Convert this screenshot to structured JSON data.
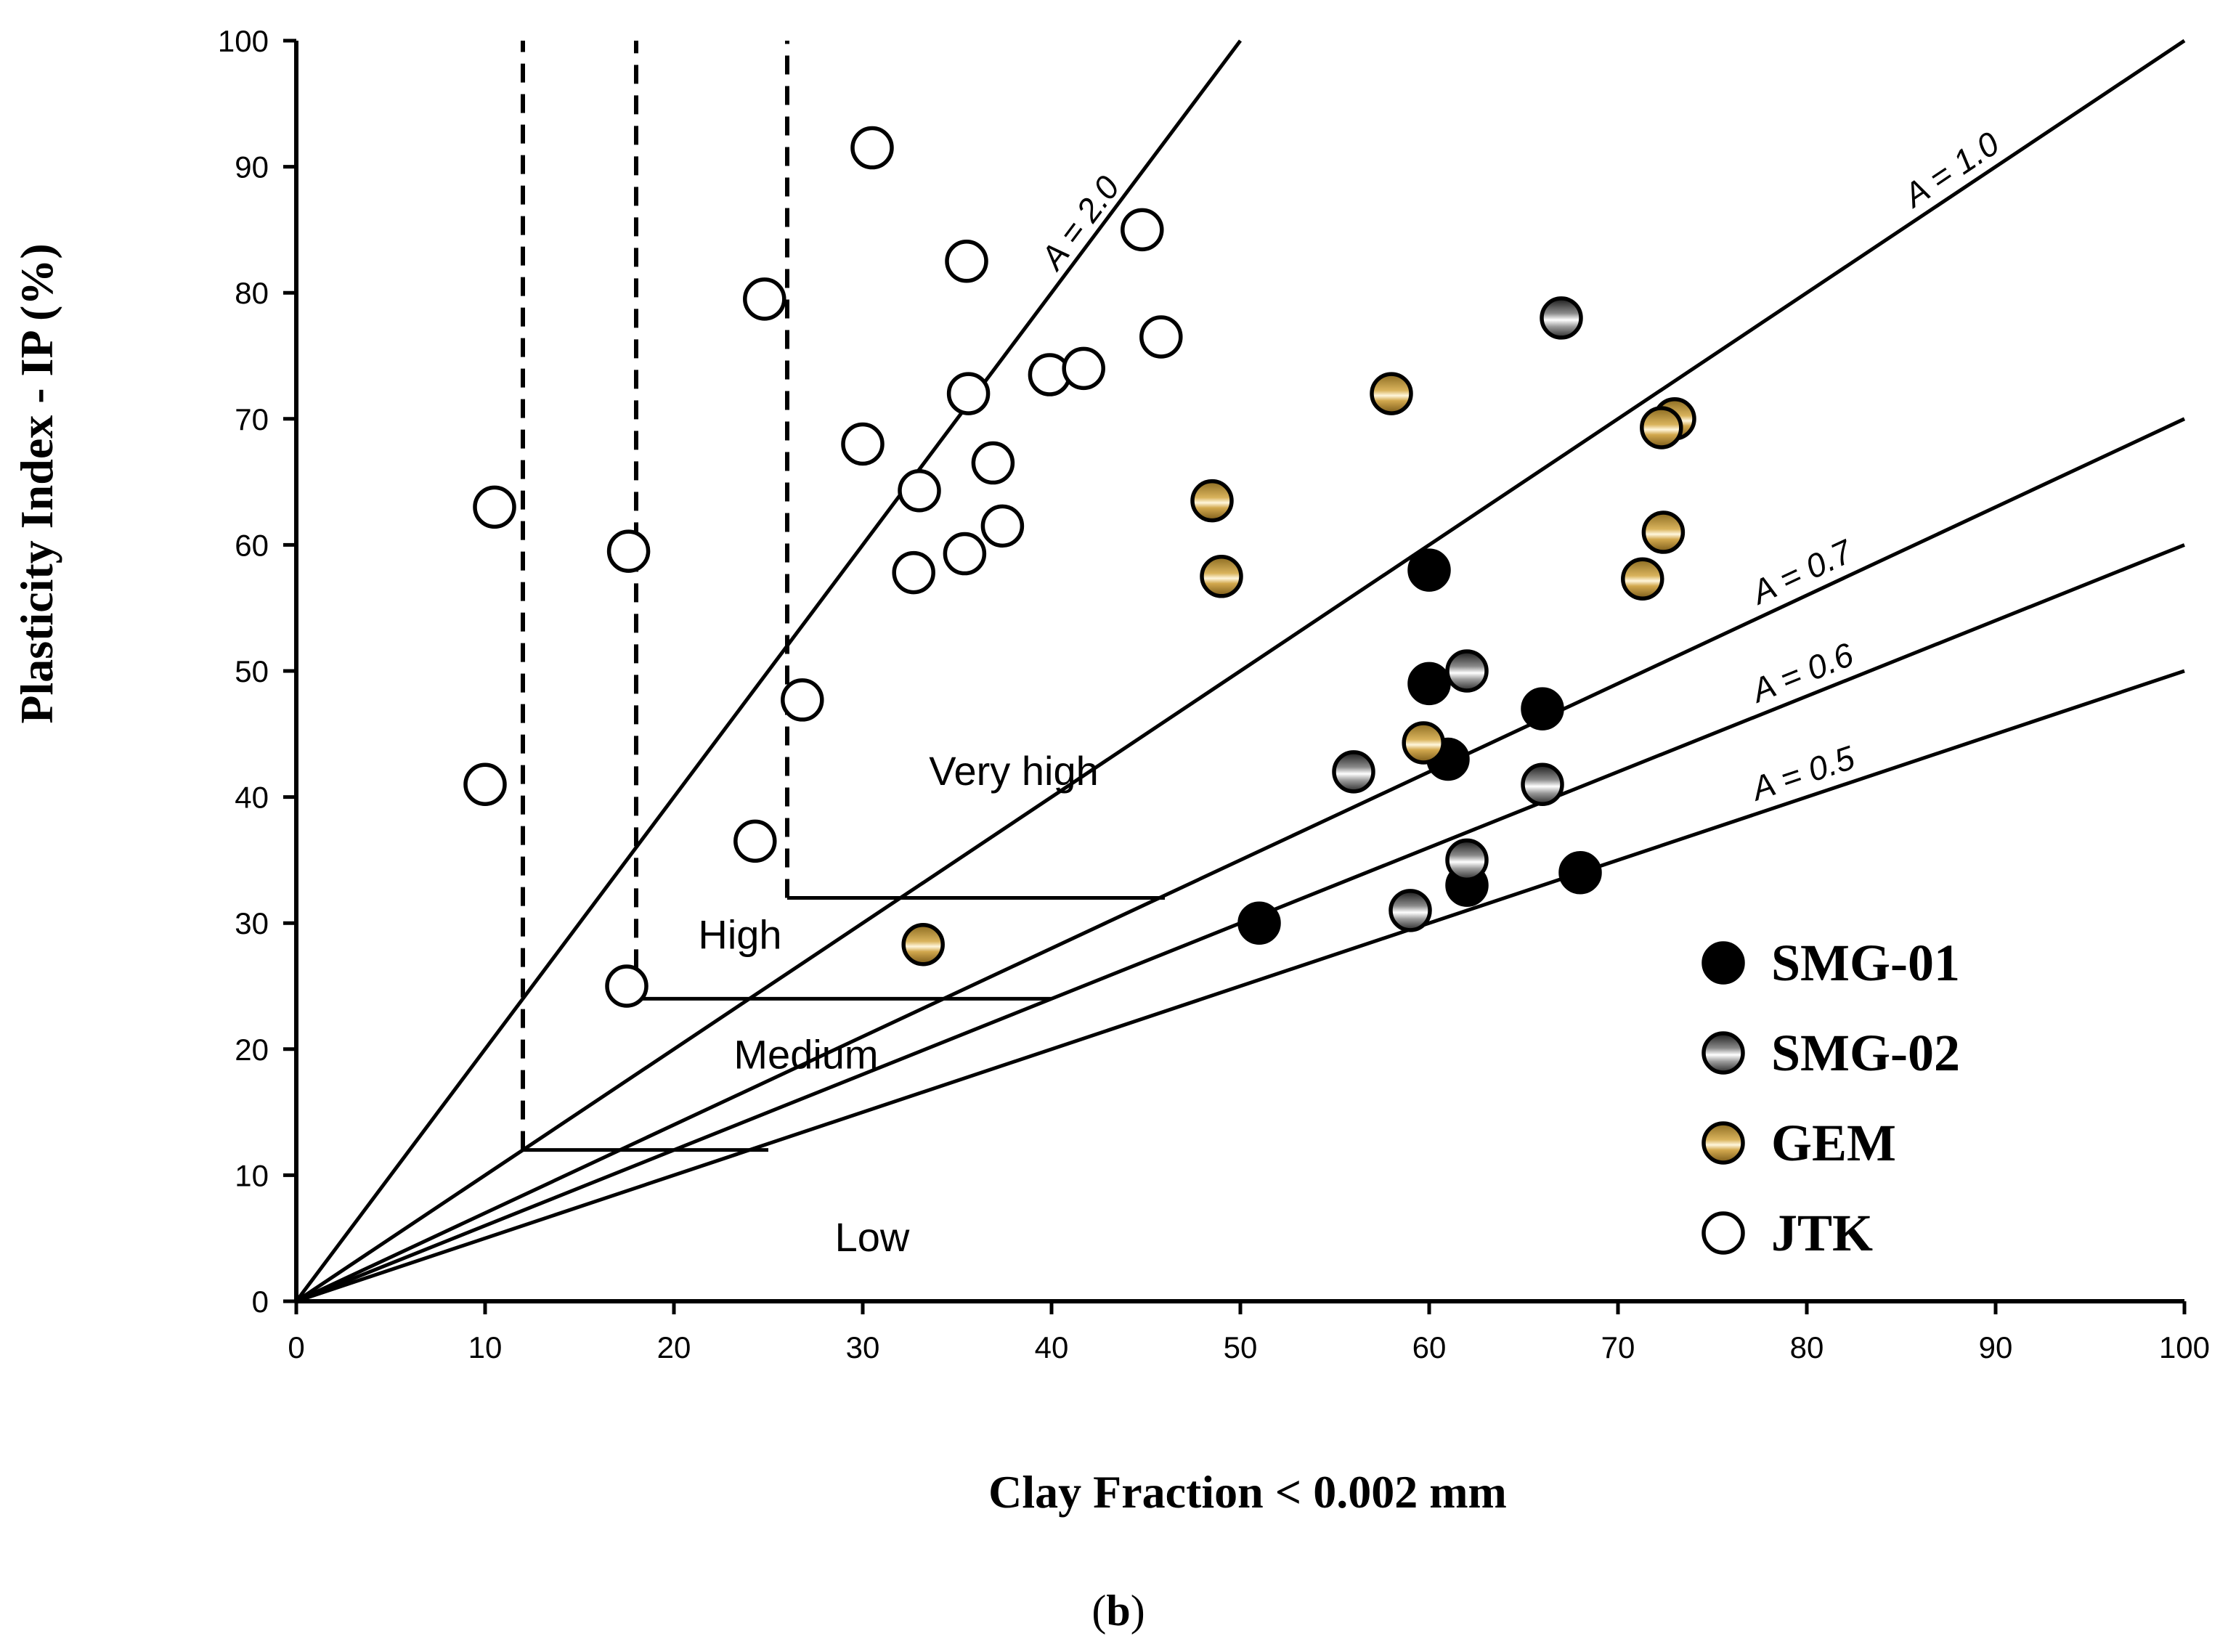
{
  "chart_data": {
    "type": "scatter",
    "title": "",
    "xlabel": "Clay Fraction < 0.002 mm",
    "ylabel": "Plasticity Index - IP (%)",
    "caption": {
      "open": "(",
      "letter": "b",
      "close": ")"
    },
    "xlim": [
      0,
      100
    ],
    "ylim": [
      0,
      100
    ],
    "x_ticks": [
      0,
      10,
      20,
      30,
      40,
      50,
      60,
      70,
      80,
      90,
      100
    ],
    "y_ticks": [
      0,
      10,
      20,
      30,
      40,
      50,
      60,
      70,
      80,
      90,
      100
    ],
    "activity_lines": [
      {
        "label": "A = 2.0",
        "slope": 2.0,
        "x_end": 50
      },
      {
        "label": "A = 1.0",
        "slope": 1.0,
        "x_end": 100
      },
      {
        "label": "A = 0.7",
        "slope": 0.7,
        "x_end": 100
      },
      {
        "label": "A = 0.6",
        "slope": 0.6,
        "x_end": 100
      },
      {
        "label": "A = 0.5",
        "slope": 0.5,
        "x_end": 100
      }
    ],
    "zone_boundaries": {
      "dashed_verticals": [
        {
          "x": 12,
          "y_from": 12,
          "y_to": 100
        },
        {
          "x": 18,
          "y_from": 24,
          "y_to": 100
        },
        {
          "x": 26,
          "y_from": 32,
          "y_to": 100
        }
      ],
      "horizontals": [
        {
          "y": 12,
          "x_from": 12,
          "x_to": 25
        },
        {
          "y": 24,
          "x_from": 18,
          "x_to": 40
        },
        {
          "y": 32,
          "x_from": 26,
          "x_to": 46
        }
      ]
    },
    "zone_labels": [
      {
        "text": "Very high",
        "x": 38,
        "y": 42
      },
      {
        "text": "High",
        "x": 23.5,
        "y": 29
      },
      {
        "text": "Medium",
        "x": 27,
        "y": 19.5
      },
      {
        "text": "Low",
        "x": 30.5,
        "y": 5
      }
    ],
    "series": [
      {
        "name": "SMG-01",
        "style": "solid-black",
        "points": [
          [
            60,
            58
          ],
          [
            60,
            49
          ],
          [
            61,
            43
          ],
          [
            66,
            47
          ],
          [
            51,
            30
          ],
          [
            62,
            33
          ],
          [
            68,
            34
          ]
        ]
      },
      {
        "name": "SMG-02",
        "style": "gradient-gray",
        "points": [
          [
            67,
            78
          ],
          [
            62,
            50
          ],
          [
            56,
            42
          ],
          [
            66,
            41
          ],
          [
            62,
            35
          ],
          [
            59,
            31
          ]
        ]
      },
      {
        "name": "GEM",
        "style": "gradient-gold",
        "points": [
          [
            58,
            72
          ],
          [
            73,
            70
          ],
          [
            72.3,
            69.3
          ],
          [
            48.5,
            63.5
          ],
          [
            72.4,
            61
          ],
          [
            49,
            57.5
          ],
          [
            71.3,
            57.3
          ],
          [
            59.7,
            44.3
          ],
          [
            33.2,
            28.3
          ]
        ]
      },
      {
        "name": "JTK",
        "style": "open",
        "points": [
          [
            30.5,
            91.5
          ],
          [
            44.8,
            85
          ],
          [
            35.5,
            82.5
          ],
          [
            24.8,
            79.5
          ],
          [
            45.8,
            76.5
          ],
          [
            39.9,
            73.5
          ],
          [
            41.7,
            74
          ],
          [
            35.6,
            72
          ],
          [
            30,
            68
          ],
          [
            36.9,
            66.5
          ],
          [
            33,
            64.3
          ],
          [
            37.4,
            61.5
          ],
          [
            35.4,
            59.3
          ],
          [
            32.7,
            57.8
          ],
          [
            17.6,
            59.5
          ],
          [
            10.5,
            63
          ],
          [
            10,
            41
          ],
          [
            26.8,
            47.7
          ],
          [
            24.3,
            36.5
          ],
          [
            17.5,
            25
          ]
        ]
      }
    ],
    "legend": {
      "position": "bottom-right",
      "entries": [
        "SMG-01",
        "SMG-02",
        "GEM",
        "JTK"
      ]
    }
  }
}
